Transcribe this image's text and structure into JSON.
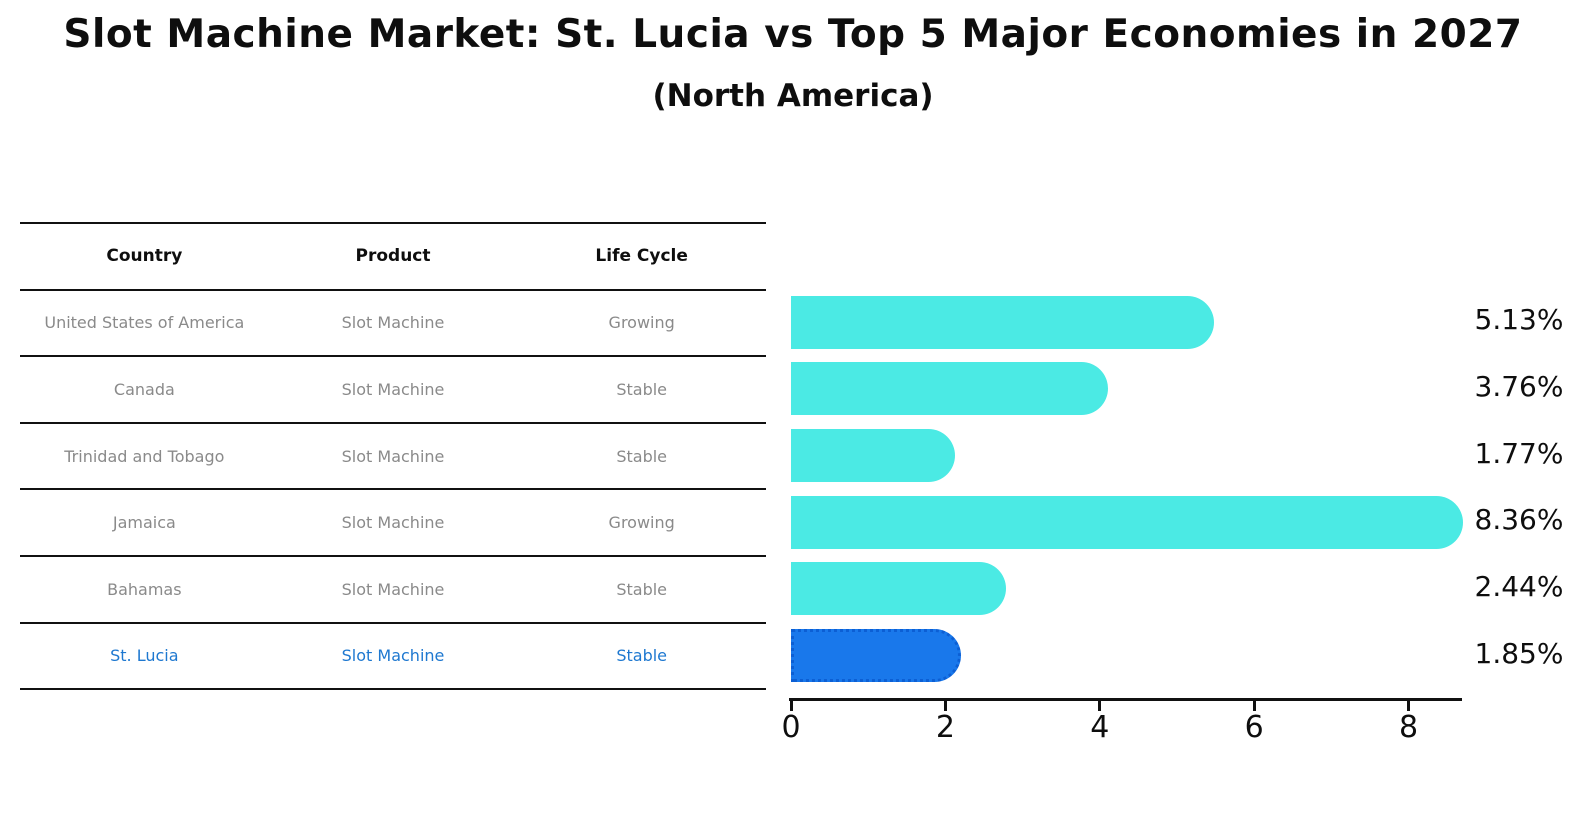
{
  "title": "Slot Machine Market: St. Lucia vs Top 5 Major Economies in 2027",
  "subtitle": "(North America)",
  "table": {
    "headers": [
      "Country",
      "Product",
      "Life Cycle"
    ],
    "rows": [
      {
        "country": "United States of America",
        "product": "Slot Machine",
        "life_cycle": "Growing",
        "highlight": false
      },
      {
        "country": "Canada",
        "product": "Slot Machine",
        "life_cycle": "Stable",
        "highlight": false
      },
      {
        "country": "Trinidad and Tobago",
        "product": "Slot Machine",
        "life_cycle": "Stable",
        "highlight": false
      },
      {
        "country": "Jamaica",
        "product": "Slot Machine",
        "life_cycle": "Growing",
        "highlight": false
      },
      {
        "country": "Bahamas",
        "product": "Slot Machine",
        "life_cycle": "Stable",
        "highlight": false
      },
      {
        "country": "St. Lucia",
        "product": "Slot Machine",
        "life_cycle": "Stable",
        "highlight": true
      }
    ]
  },
  "chart_data": {
    "type": "bar",
    "orientation": "horizontal",
    "title": "Slot Machine Market: St. Lucia vs Top 5 Major Economies in 2027",
    "subtitle": "(North America)",
    "categories": [
      "United States of America",
      "Canada",
      "Trinidad and Tobago",
      "Jamaica",
      "Bahamas",
      "St. Lucia"
    ],
    "values": [
      5.13,
      3.76,
      1.77,
      8.36,
      2.44,
      1.85
    ],
    "value_labels": [
      "5.13%",
      "3.76%",
      "1.77%",
      "8.36%",
      "2.44%",
      "1.85%"
    ],
    "x_ticks": [
      0,
      2,
      4,
      6,
      8
    ],
    "xlim": [
      0,
      8.7
    ],
    "grid": false,
    "legend": false,
    "bar_color": "#4BEAE4",
    "highlight_index": 5,
    "highlight_bar_color": "#1978EB",
    "highlight_bar_border_color": "#0c5fd4",
    "highlight_text_color": "#1e78d0",
    "text_color": "#8a8a8a",
    "axis_color": "#111111"
  }
}
